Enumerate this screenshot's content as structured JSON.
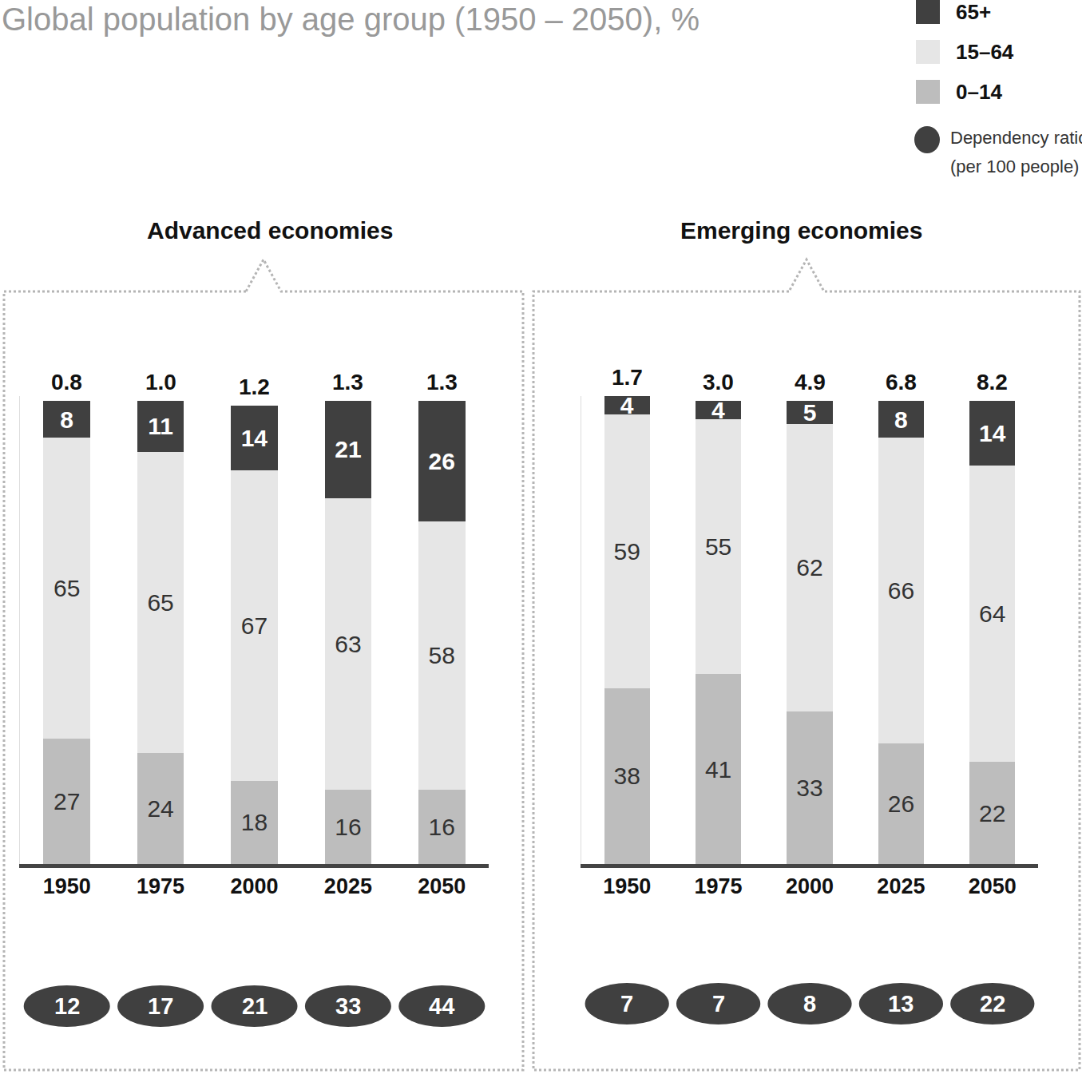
{
  "title": "Global population by age group (1950 – 2050), %",
  "dependency_ratio_label": [
    "Dependency ratio",
    "(per 100 people)"
  ],
  "legend": "top right",
  "chart_data": [
    {
      "type": "bar",
      "title": "Advanced economies",
      "stacked": true,
      "data_labels": true,
      "tick_labels": "x",
      "categories": [
        "1950",
        "1975",
        "2000",
        "2025",
        "2050"
      ],
      "ylim": [
        0,
        101
      ],
      "series": [
        {
          "name": "0–14",
          "color": "#bdbdbd",
          "values": [
            27,
            24,
            18,
            16,
            16
          ]
        },
        {
          "name": "15–64",
          "color": "#e6e6e6",
          "values": [
            65,
            65,
            67,
            63,
            58
          ]
        },
        {
          "name": "65+",
          "color": "#404040",
          "values": [
            8,
            11,
            14,
            21,
            26
          ]
        }
      ],
      "totals": [
        0.8,
        1.0,
        1.2,
        1.3,
        1.3
      ],
      "totals_labels": [
        "0.8",
        "1.0",
        "1.2",
        "1.3",
        "1.3"
      ],
      "dependency_ratio": [
        12,
        17,
        21,
        33,
        44
      ]
    },
    {
      "type": "bar",
      "title": "Emerging economies",
      "stacked": true,
      "data_labels": true,
      "tick_labels": "x",
      "categories": [
        "1950",
        "1975",
        "2000",
        "2025",
        "2050"
      ],
      "ylim": [
        0,
        101
      ],
      "series": [
        {
          "name": "0–14",
          "color": "#bdbdbd",
          "values": [
            38,
            41,
            33,
            26,
            22
          ]
        },
        {
          "name": "15–64",
          "color": "#e6e6e6",
          "values": [
            59,
            55,
            62,
            66,
            64
          ]
        },
        {
          "name": "65+",
          "color": "#404040",
          "values": [
            4,
            4,
            5,
            8,
            14
          ]
        }
      ],
      "totals": [
        1.7,
        3.0,
        4.9,
        6.8,
        8.2
      ],
      "totals_labels": [
        "1.7",
        "3.0",
        "4.9",
        "6.8",
        "8.2"
      ],
      "dependency_ratio": [
        7,
        7,
        8,
        13,
        22
      ]
    }
  ]
}
